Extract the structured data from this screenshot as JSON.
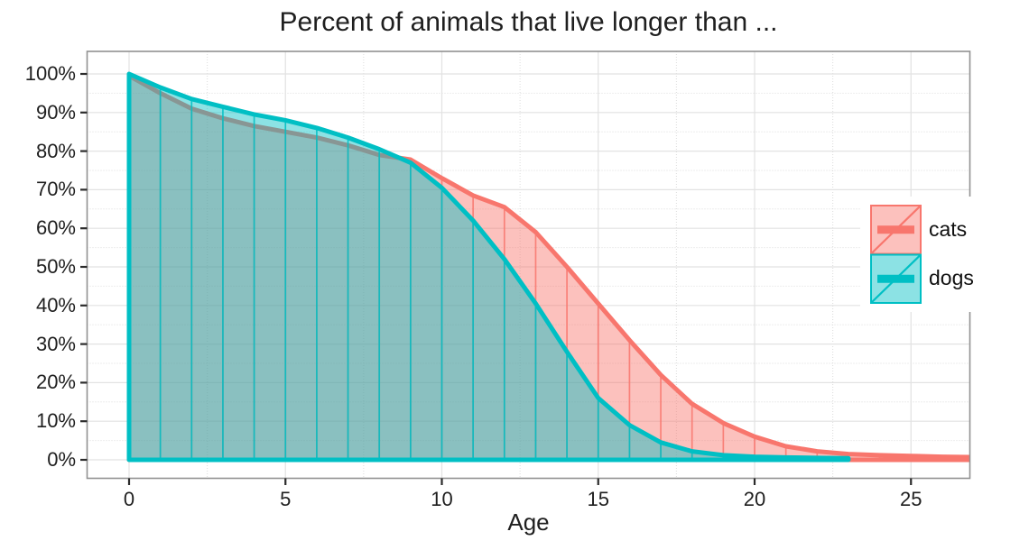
{
  "chart_data": {
    "type": "area",
    "title": "Percent of animals that live longer than ...",
    "xlabel": "Age",
    "x_axis": {
      "tick_labels": [
        "0",
        "5",
        "10",
        "15",
        "20",
        "25"
      ],
      "tick_values": [
        0,
        5,
        10,
        15,
        20,
        25
      ],
      "minor_tick_values": [
        2.5,
        7.5,
        12.5,
        17.5,
        22.5
      ],
      "range_shown": [
        -1.33,
        26.9
      ]
    },
    "y_axis": {
      "tick_labels": [
        "0%",
        "10%",
        "20%",
        "30%",
        "40%",
        "50%",
        "60%",
        "70%",
        "80%",
        "90%",
        "100%"
      ],
      "tick_values": [
        0,
        10,
        20,
        30,
        40,
        50,
        60,
        70,
        80,
        90,
        100
      ],
      "minor_tick_values": [
        5,
        15,
        25,
        35,
        45,
        55,
        65,
        75,
        85,
        95
      ],
      "range_shown": [
        -4.7,
        105.8
      ]
    },
    "grid": {
      "major": true,
      "minor": true
    },
    "legend": {
      "position": "inside-right",
      "entries": [
        "cats",
        "dogs"
      ]
    },
    "series": [
      {
        "name": "cats",
        "color": "#F8766D",
        "fill_opacity": 0.45,
        "x": [
          0,
          1,
          2,
          3,
          4,
          5,
          6,
          7,
          8,
          9,
          10,
          11,
          12,
          13,
          14,
          15,
          16,
          17,
          18,
          19,
          20,
          21,
          22,
          23,
          24,
          25,
          26,
          27
        ],
        "y_percent": [
          99.5,
          95,
          91,
          88.5,
          86.5,
          85,
          83.5,
          81.5,
          79,
          77.8,
          73,
          68.5,
          65.5,
          59,
          50,
          40.5,
          31,
          22,
          14.5,
          9.5,
          6,
          3.5,
          2.2,
          1.5,
          1.2,
          1.0,
          0.8,
          0.7
        ]
      },
      {
        "name": "dogs",
        "color": "#00BFC4",
        "fill_opacity": 0.45,
        "x": [
          0,
          1,
          2,
          3,
          4,
          5,
          6,
          7,
          8,
          9,
          10,
          11,
          12,
          13,
          14,
          15,
          16,
          17,
          18,
          19,
          20,
          21,
          22,
          23
        ],
        "y_percent": [
          100,
          96.5,
          93.5,
          91.5,
          89.5,
          88,
          86,
          83.5,
          80.5,
          77,
          70.5,
          62,
          52,
          40.5,
          28,
          16,
          9,
          4.5,
          2.2,
          1.2,
          0.8,
          0.6,
          0.5,
          0.4
        ]
      }
    ]
  }
}
